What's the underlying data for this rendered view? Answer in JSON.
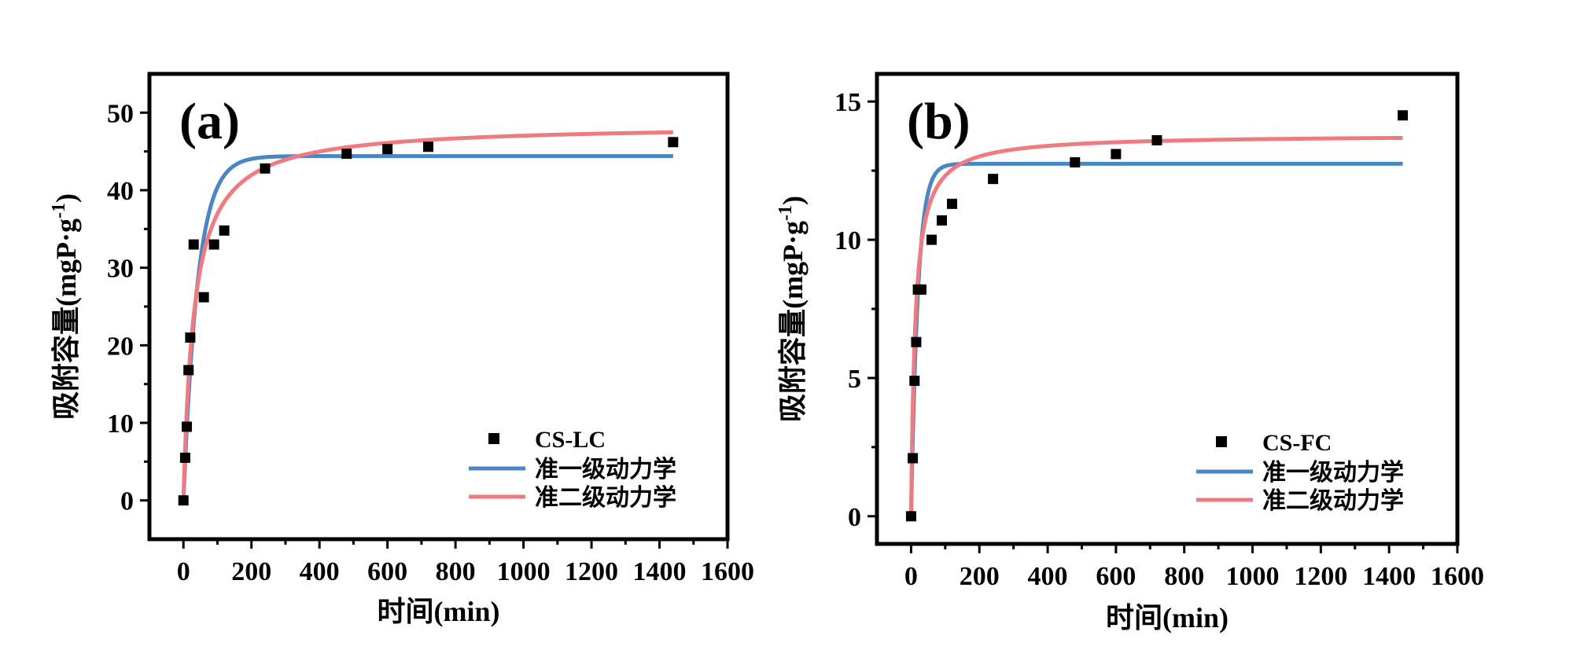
{
  "colors": {
    "pfo": "#4a86c5",
    "pso": "#ef7b80",
    "marker": "#000000",
    "background": "#ffffff"
  },
  "chart_data": [
    {
      "type": "scatter",
      "panel_label": "(a)",
      "xlabel": "时间(min)",
      "ylabel": "吸附容量(mgP·g",
      "ylabel_sup": "-1",
      "ylabel_close": ")",
      "xlim": [
        -100,
        1600
      ],
      "ylim": [
        -5,
        55
      ],
      "xticks": [
        0,
        200,
        400,
        600,
        800,
        1000,
        1200,
        1400,
        1600
      ],
      "yticks": [
        0,
        10,
        20,
        30,
        40,
        50
      ],
      "xtick_labels": [
        "0",
        "200",
        "400",
        "600",
        "800",
        "1000",
        "1200",
        "1400",
        "1600"
      ],
      "ytick_labels": [
        "0",
        "10",
        "20",
        "30",
        "40",
        "50"
      ],
      "series": [
        {
          "name": "CS-LC",
          "kind": "points",
          "x": [
            0,
            5,
            10,
            15,
            20,
            30,
            60,
            90,
            120,
            240,
            480,
            600,
            720,
            1440
          ],
          "y": [
            0,
            5.5,
            9.5,
            16.8,
            21,
            33,
            26.2,
            33,
            34.8,
            42.8,
            44.7,
            45.3,
            45.6,
            46.2
          ]
        },
        {
          "name": "准一级动力学",
          "kind": "line",
          "model": "pfo",
          "qe": 44.4,
          "k": 0.024
        },
        {
          "name": "准二级动力学",
          "kind": "line",
          "model": "pso",
          "qe": 48.5,
          "k": 0.00066
        }
      ],
      "legend_position": "bottom-right"
    },
    {
      "type": "scatter",
      "panel_label": "(b)",
      "xlabel": "时间(min)",
      "ylabel": "吸附容量(mgP·g",
      "ylabel_sup": "-1",
      "ylabel_close": ")",
      "xlim": [
        -100,
        1600
      ],
      "ylim": [
        -1,
        16
      ],
      "xticks": [
        0,
        200,
        400,
        600,
        800,
        1000,
        1200,
        1400,
        1600
      ],
      "yticks": [
        0,
        5,
        10,
        15
      ],
      "xtick_labels": [
        "0",
        "200",
        "400",
        "600",
        "800",
        "1000",
        "1200",
        "1400",
        "1600"
      ],
      "ytick_labels": [
        "0",
        "5",
        "10",
        "15"
      ],
      "series": [
        {
          "name": "CS-FC",
          "kind": "points",
          "x": [
            0,
            5,
            10,
            15,
            20,
            30,
            60,
            90,
            120,
            240,
            480,
            600,
            720,
            1440
          ],
          "y": [
            0,
            2.1,
            4.9,
            6.3,
            8.2,
            8.2,
            10,
            10.7,
            11.3,
            12.2,
            12.8,
            13.1,
            13.6,
            14.5
          ]
        },
        {
          "name": "准一级动力学",
          "kind": "line",
          "model": "pfo",
          "qe": 12.75,
          "k": 0.05
        },
        {
          "name": "准二级动力学",
          "kind": "line",
          "model": "pso",
          "qe": 13.8,
          "k": 0.006
        }
      ],
      "legend_position": "bottom-right"
    }
  ]
}
